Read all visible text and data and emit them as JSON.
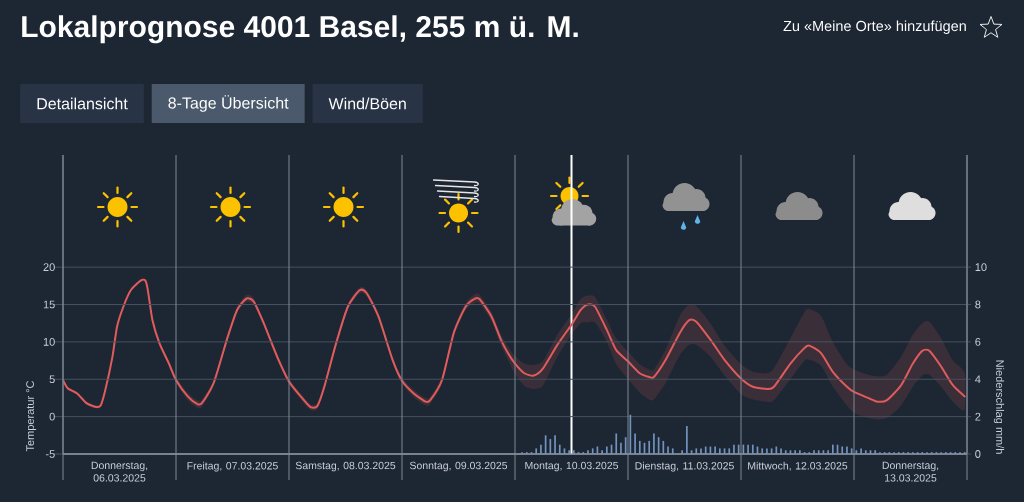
{
  "chart_data": {
    "type": "line",
    "title": "Lokalprognose 4001 Basel, 255 m ü. M.",
    "annotations": [
      "Zu «Meine Orte» hinzufügen",
      "Detailansicht",
      "8-Tage Übersicht",
      "Wind/Böen"
    ],
    "ylabel": "Temperatur °C",
    "y2label": "Niederschlag mm/h",
    "xlim": [
      "2025-03-06T00:00",
      "2025-03-14T00:00"
    ],
    "xticks": [
      {
        "value": "2025-03-06T00:00",
        "label": null
      },
      {
        "value": "2025-03-06T12:00",
        "label": "Donnerstag, 06.03.2025"
      },
      {
        "value": "2025-03-07T00:00",
        "label": null
      },
      {
        "value": "2025-03-07T12:00",
        "label": "Freitag, 07.03.2025"
      },
      {
        "value": "2025-03-08T00:00",
        "label": null
      },
      {
        "value": "2025-03-08T12:00",
        "label": "Samstag, 08.03.2025"
      },
      {
        "value": "2025-03-09T00:00",
        "label": null
      },
      {
        "value": "2025-03-09T12:00",
        "label": "Sonntag, 09.03.2025"
      },
      {
        "value": "2025-03-10T00:00",
        "label": null
      },
      {
        "value": "2025-03-10T12:00",
        "label": "Montag, 10.03.2025"
      },
      {
        "value": "2025-03-11T00:00",
        "label": null
      },
      {
        "value": "2025-03-11T12:00",
        "label": "Dienstag, 11.03.2025"
      },
      {
        "value": "2025-03-12T00:00",
        "label": null
      },
      {
        "value": "2025-03-12T12:00",
        "label": "Mittwoch, 12.03.2025"
      },
      {
        "value": "2025-03-13T00:00",
        "label": null
      },
      {
        "value": "2025-03-13T12:00",
        "label": "Donnerstag, 13.03.2025"
      },
      {
        "value": "2025-03-14T00:00",
        "label": null
      }
    ],
    "ylim": [
      -5,
      35
    ],
    "yticks": [
      -5,
      0,
      5,
      10,
      15,
      20
    ],
    "y2lim": [
      0,
      16
    ],
    "y2ticks": [
      0,
      2,
      4,
      6,
      8,
      10
    ],
    "grid": true,
    "ref_lines": [
      {
        "axis": "x",
        "value": "2025-03-10T12:00",
        "color": "#ffffff"
      }
    ],
    "series": [
      {
        "color": "#e05c5c",
        "x": [
          "2025-03-06T00:00",
          "2025-03-06T01:00",
          "2025-03-06T03:00",
          "2025-03-06T05:00",
          "2025-03-06T07:00",
          "2025-03-06T08:00",
          "2025-03-06T09:00",
          "2025-03-06T10:30",
          "2025-03-06T11:30",
          "2025-03-06T13:00",
          "2025-03-06T14:30",
          "2025-03-06T16:30",
          "2025-03-06T17:30",
          "2025-03-06T18:00",
          "2025-03-06T19:00",
          "2025-03-06T20:30",
          "2025-03-06T22:30",
          "2025-03-07T00:00",
          "2025-03-07T02:30",
          "2025-03-07T04:30",
          "2025-03-07T05:30",
          "2025-03-07T08:00",
          "2025-03-07T11:00",
          "2025-03-07T13:00",
          "2025-03-07T15:00",
          "2025-03-07T16:30",
          "2025-03-07T18:30",
          "2025-03-07T21:30",
          "2025-03-08T00:00",
          "2025-03-08T02:30",
          "2025-03-08T04:30",
          "2025-03-08T06:00",
          "2025-03-08T07:30",
          "2025-03-08T10:00",
          "2025-03-08T12:30",
          "2025-03-08T15:00",
          "2025-03-08T16:30",
          "2025-03-08T19:00",
          "2025-03-08T22:00",
          "2025-03-09T00:00",
          "2025-03-09T02:30",
          "2025-03-09T05:00",
          "2025-03-09T06:00",
          "2025-03-09T08:30",
          "2025-03-09T11:00",
          "2025-03-09T13:30",
          "2025-03-09T15:30",
          "2025-03-09T16:30",
          "2025-03-09T19:00",
          "2025-03-09T21:00",
          "2025-03-09T22:30",
          "2025-03-10T00:00",
          "2025-03-10T02:00",
          "2025-03-10T04:00",
          "2025-03-10T06:00",
          "2025-03-10T09:00",
          "2025-03-10T12:00",
          "2025-03-10T14:00",
          "2025-03-10T15:30",
          "2025-03-10T17:00",
          "2025-03-10T19:30",
          "2025-03-10T21:30",
          "2025-03-11T00:00",
          "2025-03-11T02:30",
          "2025-03-11T04:30",
          "2025-03-11T05:30",
          "2025-03-11T08:00",
          "2025-03-11T11:00",
          "2025-03-11T13:00",
          "2025-03-11T14:30",
          "2025-03-11T17:30",
          "2025-03-11T20:30",
          "2025-03-12T00:00",
          "2025-03-12T02:30",
          "2025-03-12T05:30",
          "2025-03-12T07:00",
          "2025-03-12T10:30",
          "2025-03-12T13:30",
          "2025-03-12T14:30",
          "2025-03-12T17:00",
          "2025-03-12T19:30",
          "2025-03-12T22:30",
          "2025-03-13T00:00",
          "2025-03-13T03:00",
          "2025-03-13T05:00",
          "2025-03-13T07:00",
          "2025-03-13T10:00",
          "2025-03-13T12:30",
          "2025-03-13T14:30",
          "2025-03-13T16:00",
          "2025-03-13T18:30",
          "2025-03-13T21:00",
          "2025-03-13T23:30"
        ],
        "values": [
          4.9,
          3.8,
          3.1,
          1.8,
          1.3,
          1.5,
          3.6,
          8.0,
          12.1,
          15.0,
          17.0,
          18.2,
          18.2,
          17.0,
          12.9,
          9.8,
          7.1,
          4.9,
          2.7,
          1.7,
          1.8,
          4.5,
          10.7,
          14.3,
          15.8,
          15.4,
          12.7,
          8.0,
          4.7,
          2.7,
          1.3,
          1.4,
          4.0,
          9.8,
          14.7,
          16.9,
          16.5,
          13.4,
          7.6,
          4.8,
          3.1,
          2.0,
          2.2,
          4.9,
          11.2,
          14.7,
          15.8,
          15.7,
          13.4,
          10.3,
          8.5,
          7.1,
          5.8,
          5.5,
          6.5,
          9.6,
          12.3,
          14.3,
          15.0,
          14.7,
          11.6,
          8.9,
          7.4,
          5.8,
          5.3,
          5.3,
          7.6,
          11.2,
          12.9,
          12.7,
          10.3,
          7.6,
          5.1,
          4.0,
          3.7,
          4.0,
          7.1,
          9.2,
          9.5,
          8.5,
          6.0,
          4.0,
          3.3,
          2.5,
          2.0,
          2.2,
          4.2,
          7.1,
          8.8,
          8.8,
          6.7,
          4.2,
          2.7
        ],
        "lower": [
          4.7,
          3.6,
          2.9,
          1.6,
          1.1,
          1.3,
          3.4,
          7.8,
          11.9,
          14.8,
          16.8,
          18.0,
          18.0,
          16.8,
          12.7,
          9.5,
          6.7,
          4.5,
          2.2,
          1.2,
          1.3,
          4.1,
          10.3,
          13.9,
          15.3,
          14.9,
          12.3,
          7.6,
          4.3,
          2.3,
          0.9,
          1.0,
          3.6,
          9.4,
          14.3,
          16.5,
          16.1,
          13.0,
          7.2,
          4.4,
          2.6,
          1.5,
          1.7,
          4.4,
          10.7,
          14.2,
          15.2,
          15.1,
          12.8,
          9.5,
          7.6,
          5.7,
          4.1,
          3.7,
          4.2,
          8.0,
          11.0,
          12.5,
          12.6,
          12.6,
          10.0,
          7.0,
          5.0,
          3.2,
          2.3,
          2.3,
          4.5,
          8.2,
          9.6,
          9.6,
          8.0,
          5.5,
          3.0,
          2.3,
          2.0,
          2.2,
          5.0,
          7.5,
          7.6,
          6.8,
          4.0,
          1.5,
          0.5,
          -0.2,
          -0.4,
          -0.2,
          1.5,
          4.0,
          5.5,
          5.6,
          4.0,
          2.0,
          0.9
        ],
        "upper": [
          5.1,
          4.0,
          3.3,
          2.0,
          1.5,
          1.7,
          3.8,
          8.2,
          12.3,
          15.2,
          17.2,
          18.4,
          18.4,
          17.2,
          13.1,
          10.1,
          7.5,
          5.3,
          3.2,
          2.2,
          2.3,
          4.9,
          11.1,
          14.7,
          16.3,
          15.9,
          13.1,
          8.4,
          5.1,
          3.1,
          1.7,
          1.8,
          4.4,
          10.2,
          15.1,
          17.3,
          16.9,
          13.8,
          8.0,
          5.2,
          3.6,
          2.5,
          2.7,
          5.4,
          11.7,
          15.2,
          16.4,
          16.3,
          14.0,
          11.0,
          9.4,
          8.1,
          7.1,
          6.9,
          7.5,
          11.0,
          13.7,
          15.8,
          16.2,
          16.0,
          13.0,
          10.5,
          8.7,
          7.0,
          6.3,
          6.3,
          9.0,
          13.5,
          15.0,
          14.8,
          12.5,
          9.5,
          7.0,
          6.0,
          5.8,
          6.5,
          10.5,
          14.0,
          14.4,
          13.5,
          10.0,
          7.0,
          6.3,
          5.6,
          5.4,
          5.6,
          8.0,
          11.0,
          12.5,
          12.7,
          10.5,
          7.5,
          5.8
        ]
      },
      {
        "type": "bar",
        "axis": "y2",
        "color": "#7393bd",
        "x": [
          "2025-03-10T01:30",
          "2025-03-10T02:30",
          "2025-03-10T03:30",
          "2025-03-10T04:30",
          "2025-03-10T05:30",
          "2025-03-10T06:30",
          "2025-03-10T07:30",
          "2025-03-10T08:30",
          "2025-03-10T09:30",
          "2025-03-10T10:30",
          "2025-03-10T11:30",
          "2025-03-10T12:30",
          "2025-03-10T13:30",
          "2025-03-10T14:30",
          "2025-03-10T15:30",
          "2025-03-10T16:30",
          "2025-03-10T17:30",
          "2025-03-10T18:30",
          "2025-03-10T19:30",
          "2025-03-10T20:30",
          "2025-03-10T21:30",
          "2025-03-10T22:30",
          "2025-03-10T23:30",
          "2025-03-11T00:30",
          "2025-03-11T01:30",
          "2025-03-11T02:30",
          "2025-03-11T03:30",
          "2025-03-11T04:30",
          "2025-03-11T05:30",
          "2025-03-11T06:30",
          "2025-03-11T07:30",
          "2025-03-11T08:30",
          "2025-03-11T09:30",
          "2025-03-11T10:30",
          "2025-03-11T11:30",
          "2025-03-11T12:30",
          "2025-03-11T13:30",
          "2025-03-11T14:30",
          "2025-03-11T15:30",
          "2025-03-11T16:30",
          "2025-03-11T17:30",
          "2025-03-11T18:30",
          "2025-03-11T19:30",
          "2025-03-11T20:30",
          "2025-03-11T21:30",
          "2025-03-11T22:30",
          "2025-03-11T23:30",
          "2025-03-12T00:30",
          "2025-03-12T01:30",
          "2025-03-12T02:30",
          "2025-03-12T03:30",
          "2025-03-12T04:30",
          "2025-03-12T05:30",
          "2025-03-12T06:30",
          "2025-03-12T07:30",
          "2025-03-12T08:30",
          "2025-03-12T09:30",
          "2025-03-12T10:30",
          "2025-03-12T11:30",
          "2025-03-12T12:30",
          "2025-03-12T13:30",
          "2025-03-12T14:30",
          "2025-03-12T15:30",
          "2025-03-12T16:30",
          "2025-03-12T17:30",
          "2025-03-12T18:30",
          "2025-03-12T19:30",
          "2025-03-12T20:30",
          "2025-03-12T21:30",
          "2025-03-12T22:30",
          "2025-03-12T23:30",
          "2025-03-13T00:30",
          "2025-03-13T01:30",
          "2025-03-13T02:30",
          "2025-03-13T03:30",
          "2025-03-13T04:30",
          "2025-03-13T05:30",
          "2025-03-13T06:30",
          "2025-03-13T07:30",
          "2025-03-13T08:30",
          "2025-03-13T09:30",
          "2025-03-13T10:30",
          "2025-03-13T11:30",
          "2025-03-13T12:30",
          "2025-03-13T13:30",
          "2025-03-13T14:30",
          "2025-03-13T15:30",
          "2025-03-13T16:30",
          "2025-03-13T17:30",
          "2025-03-13T18:30",
          "2025-03-13T19:30",
          "2025-03-13T20:30",
          "2025-03-13T21:30",
          "2025-03-13T22:30",
          "2025-03-13T23:30"
        ],
        "values": [
          0.1,
          0.1,
          0.1,
          0.3,
          0.5,
          1.0,
          0.8,
          1.0,
          0.5,
          0.3,
          0.2,
          0.2,
          0.1,
          0.1,
          0.2,
          0.3,
          0.4,
          0.2,
          0.4,
          0.5,
          1.1,
          0.6,
          0.9,
          2.1,
          1.1,
          0.7,
          0.6,
          0.7,
          1.1,
          0.9,
          0.7,
          0.4,
          0.3,
          0,
          0.2,
          1.5,
          0.2,
          0.3,
          0.3,
          0.4,
          0.4,
          0.4,
          0.3,
          0.3,
          0.3,
          0.5,
          0.5,
          0.5,
          0.5,
          0.5,
          0.4,
          0.3,
          0.3,
          0.3,
          0.4,
          0.3,
          0.2,
          0.2,
          0.2,
          0.2,
          0.1,
          0.1,
          0.2,
          0.2,
          0.2,
          0.2,
          0.5,
          0.5,
          0.4,
          0.4,
          0.3,
          0.2,
          0.3,
          0.2,
          0.2,
          0.2,
          0.1,
          0.1,
          0.1,
          0.1,
          0.1,
          0.1,
          0.1,
          0.1,
          0.1,
          0.1,
          0.1,
          0.1,
          0.1,
          0.1,
          0.1,
          0.1,
          0.1,
          0.1,
          0.1
        ]
      }
    ]
  }
}
